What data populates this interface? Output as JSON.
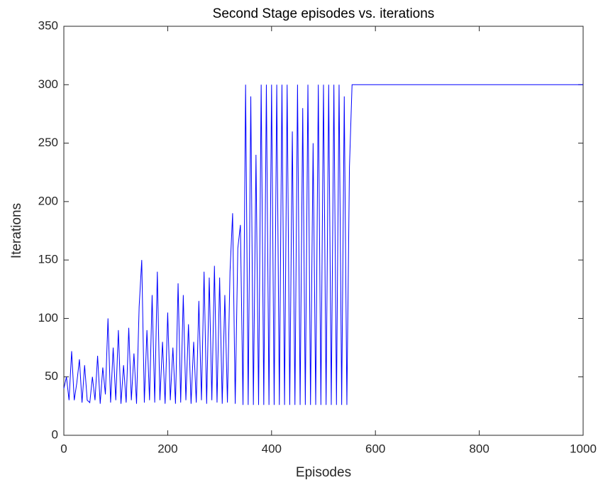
{
  "chart_data": {
    "type": "line",
    "title": "Second Stage episodes vs. iterations",
    "x_label": "Episodes",
    "y_label": "Iterations",
    "x": [
      0,
      5,
      10,
      15,
      20,
      25,
      30,
      35,
      40,
      45,
      50,
      55,
      60,
      65,
      70,
      75,
      80,
      85,
      90,
      95,
      100,
      105,
      110,
      115,
      120,
      125,
      130,
      135,
      140,
      145,
      150,
      155,
      160,
      165,
      170,
      175,
      180,
      185,
      190,
      195,
      200,
      205,
      210,
      215,
      220,
      225,
      230,
      235,
      240,
      245,
      250,
      255,
      260,
      265,
      270,
      275,
      280,
      285,
      290,
      295,
      300,
      305,
      310,
      315,
      320,
      325,
      330,
      335,
      340,
      345,
      350,
      355,
      360,
      365,
      370,
      375,
      380,
      385,
      390,
      395,
      400,
      405,
      410,
      415,
      420,
      425,
      430,
      435,
      440,
      445,
      450,
      455,
      460,
      465,
      470,
      475,
      480,
      485,
      490,
      495,
      500,
      505,
      510,
      515,
      520,
      525,
      530,
      535,
      540,
      545,
      550,
      555,
      1000
    ],
    "series": [
      {
        "color": "#0000ff",
        "values": [
          40,
          50,
          30,
          72,
          30,
          45,
          65,
          28,
          60,
          30,
          28,
          50,
          30,
          68,
          27,
          58,
          35,
          100,
          28,
          75,
          30,
          90,
          27,
          60,
          28,
          92,
          30,
          70,
          27,
          110,
          150,
          28,
          90,
          30,
          120,
          28,
          140,
          30,
          80,
          27,
          105,
          30,
          75,
          27,
          130,
          28,
          120,
          30,
          95,
          27,
          80,
          28,
          115,
          30,
          140,
          27,
          135,
          30,
          145,
          28,
          135,
          27,
          120,
          28,
          140,
          190,
          27,
          160,
          180,
          26,
          300,
          26,
          290,
          26,
          240,
          26,
          300,
          26,
          300,
          26,
          300,
          26,
          300,
          26,
          300,
          26,
          300,
          26,
          260,
          26,
          300,
          26,
          280,
          26,
          300,
          26,
          250,
          26,
          300,
          26,
          300,
          26,
          300,
          26,
          300,
          26,
          300,
          26,
          290,
          26,
          230,
          300,
          300
        ]
      }
    ],
    "xlim": [
      0,
      1000
    ],
    "xticks": [
      0,
      200,
      400,
      600,
      800,
      1000
    ],
    "ylim": [
      0,
      350
    ],
    "yticks": [
      0,
      50,
      100,
      150,
      200,
      250,
      300,
      350
    ]
  }
}
